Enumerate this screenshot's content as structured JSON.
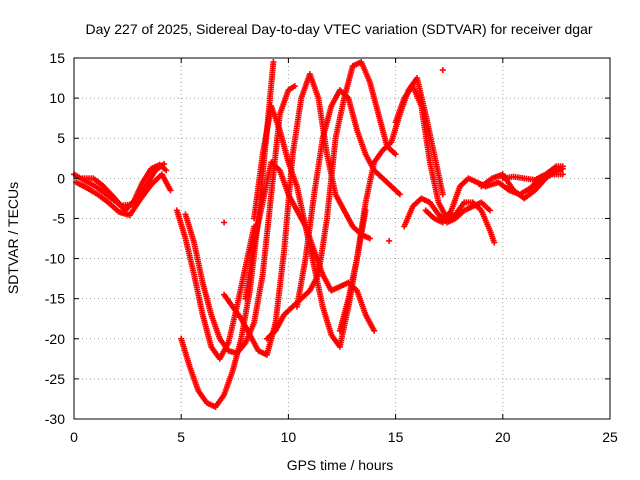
{
  "chart_data": {
    "type": "scatter",
    "title": "Day 227 of 2025, Sidereal Day-to-day VTEC variation (SDTVAR) for receiver dgar",
    "xlabel": "GPS time / hours",
    "ylabel": "SDTVAR / TECUs",
    "xlim": [
      0,
      25
    ],
    "ylim": [
      -30,
      15
    ],
    "xticks": [
      "0",
      "5",
      "10",
      "15",
      "20",
      "25"
    ],
    "yticks": [
      "15",
      "10",
      "5",
      "0",
      "-5",
      "-10",
      "-15",
      "-20",
      "-25",
      "-30"
    ],
    "grid": true,
    "marker": "+",
    "color": "#ff0000",
    "series": [
      {
        "x": [
          0.0,
          0.5,
          1.0,
          1.5,
          2.0,
          2.4,
          2.8,
          3.2,
          3.6,
          4.0,
          4.3
        ],
        "y": [
          0.5,
          -0.3,
          -1.0,
          -2.0,
          -3.0,
          -4.0,
          -2.8,
          -0.5,
          1.2,
          1.7,
          1.0
        ]
      },
      {
        "x": [
          0.1,
          0.6,
          1.1,
          1.6,
          2.1,
          2.6,
          3.1,
          3.6,
          4.1,
          4.5
        ],
        "y": [
          -0.5,
          -1.2,
          -2.0,
          -3.0,
          -4.2,
          -4.6,
          -2.6,
          -0.8,
          0.5,
          -1.5
        ]
      },
      {
        "x": [
          0.4,
          0.9,
          1.3,
          1.8,
          2.2,
          2.8,
          3.3,
          3.8,
          4.2
        ],
        "y": [
          0.0,
          0.0,
          -0.8,
          -2.2,
          -3.4,
          -3.2,
          -1.2,
          1.0,
          1.8
        ]
      },
      {
        "x": [
          4.8,
          5.2,
          5.6,
          6.0,
          6.4,
          6.8,
          7.2,
          7.6,
          8.0,
          8.4
        ],
        "y": [
          -4.0,
          -7.5,
          -12.0,
          -17.0,
          -21.0,
          -22.5,
          -20.5,
          -16.0,
          -11.0,
          -6.0
        ]
      },
      {
        "x": [
          5.0,
          5.4,
          5.8,
          6.2,
          6.6,
          7.0,
          7.4,
          7.8,
          8.2,
          8.6,
          9.0,
          9.3
        ],
        "y": [
          -20.0,
          -23.5,
          -26.5,
          -28.0,
          -28.5,
          -27.0,
          -24.0,
          -20.0,
          -14.0,
          -5.0,
          6.0,
          14.5
        ]
      },
      {
        "x": [
          5.2,
          5.6,
          6.0,
          6.4,
          6.8,
          7.2,
          7.6,
          8.0,
          8.4,
          8.8,
          9.2,
          9.6,
          10.0,
          10.3
        ],
        "y": [
          -4.5,
          -8.0,
          -13.0,
          -17.0,
          -20.0,
          -21.5,
          -21.8,
          -20.5,
          -18.0,
          -12.0,
          -2.0,
          8.0,
          11.0,
          11.5
        ]
      },
      {
        "x": [
          7.0,
          7.4,
          7.8,
          8.2,
          8.6,
          9.0,
          9.4,
          9.8,
          10.2,
          10.6,
          11.0,
          11.4,
          11.8,
          12.2,
          12.6,
          13.0,
          13.4,
          13.8
        ],
        "y": [
          -14.5,
          -16.0,
          -17.5,
          -19.5,
          -21.5,
          -22.0,
          -18.0,
          -9.0,
          3.0,
          10.0,
          13.0,
          10.0,
          3.0,
          -2.0,
          -4.0,
          -6.0,
          -7.0,
          -7.5
        ]
      },
      {
        "x": [
          8.0,
          8.4,
          8.8,
          9.2,
          9.6,
          10.0,
          10.4,
          10.8,
          11.2,
          11.6,
          12.0,
          12.4,
          12.8,
          13.2,
          13.6,
          14.0
        ],
        "y": [
          -15.0,
          -8.0,
          -3.0,
          2.0,
          1.0,
          -2.0,
          -4.0,
          -6.0,
          -9.0,
          -12.0,
          -14.0,
          -13.5,
          -13.0,
          -14.0,
          -17.0,
          -19.0
        ]
      },
      {
        "x": [
          8.4,
          8.8,
          9.2,
          9.6,
          10.0,
          10.4,
          10.8,
          11.2,
          11.6,
          12.0,
          12.4,
          12.8,
          13.2,
          13.6
        ],
        "y": [
          -5.0,
          3.0,
          9.0,
          6.0,
          2.0,
          -1.0,
          -6.0,
          -11.0,
          -16.0,
          -19.5,
          -21.0,
          -16.0,
          -10.0,
          -4.0
        ]
      },
      {
        "x": [
          9.0,
          9.4,
          9.8,
          10.2,
          10.6,
          11.0,
          11.4,
          11.8,
          12.2,
          12.6,
          13.0,
          13.4,
          13.8,
          14.2,
          14.6,
          15.0
        ],
        "y": [
          -20.0,
          -19.0,
          -17.0,
          -16.0,
          -15.0,
          -14.0,
          -12.0,
          -5.0,
          5.0,
          10.0,
          14.0,
          14.5,
          12.0,
          8.0,
          4.0,
          3.0
        ]
      },
      {
        "x": [
          10.4,
          10.8,
          11.2,
          11.6,
          12.0,
          12.4,
          12.8,
          13.2,
          13.6,
          14.0,
          14.4,
          14.8,
          15.2
        ],
        "y": [
          -16.0,
          -10.0,
          -2.0,
          5.0,
          9.0,
          11.0,
          10.0,
          6.0,
          3.0,
          1.0,
          0.0,
          -1.0,
          -2.0
        ]
      },
      {
        "x": [
          12.4,
          12.8,
          13.2,
          13.6,
          14.0,
          14.4,
          14.8,
          15.2,
          15.6,
          16.0,
          16.4,
          16.8,
          17.2
        ],
        "y": [
          -19.0,
          -15.0,
          -10.0,
          -3.0,
          2.0,
          3.5,
          4.5,
          8.0,
          11.0,
          12.5,
          8.0,
          3.0,
          -2.0
        ]
      },
      {
        "x": [
          15.0,
          15.4,
          15.8,
          16.2,
          16.6,
          17.0,
          17.4,
          17.8,
          18.2,
          18.6,
          19.0,
          19.4,
          19.6
        ],
        "y": [
          7.0,
          10.0,
          11.5,
          9.0,
          2.0,
          -3.0,
          -5.0,
          -4.5,
          -3.0,
          -3.0,
          -4.0,
          -6.5,
          -8.0
        ]
      },
      {
        "x": [
          15.4,
          15.8,
          16.2,
          16.6,
          17.0,
          17.4,
          17.8,
          18.2,
          18.6,
          19.0,
          19.4
        ],
        "y": [
          -6.0,
          -3.5,
          -2.5,
          -3.0,
          -4.5,
          -5.5,
          -5.0,
          -4.0,
          -3.5,
          -3.0,
          -4.0
        ]
      },
      {
        "x": [
          16.4,
          16.8,
          17.2,
          17.6,
          18.0,
          18.4,
          18.8,
          19.2
        ],
        "y": [
          -4.0,
          -5.0,
          -5.5,
          -4.0,
          -1.0,
          0.0,
          -0.5,
          -1.0
        ]
      },
      {
        "x": [
          19.0,
          19.5,
          20.0,
          20.5,
          21.0,
          21.5,
          22.0,
          22.5,
          22.8
        ],
        "y": [
          -1.0,
          0.0,
          0.5,
          -1.5,
          -2.5,
          -1.5,
          0.0,
          1.0,
          1.2
        ]
      },
      {
        "x": [
          19.2,
          19.8,
          20.3,
          20.8,
          21.3,
          21.8,
          22.3,
          22.8
        ],
        "y": [
          -1.0,
          -0.5,
          -1.5,
          -2.0,
          -1.2,
          0.2,
          0.5,
          0.5
        ]
      },
      {
        "x": [
          20.0,
          20.5,
          21.0,
          21.5,
          22.0,
          22.5,
          22.8
        ],
        "y": [
          0.0,
          0.2,
          0.0,
          -0.2,
          0.5,
          1.5,
          1.5
        ]
      }
    ],
    "isolated_points": [
      {
        "x": 7.0,
        "y": -5.5
      },
      {
        "x": 14.7,
        "y": -7.8
      },
      {
        "x": 17.2,
        "y": 13.5
      }
    ]
  }
}
